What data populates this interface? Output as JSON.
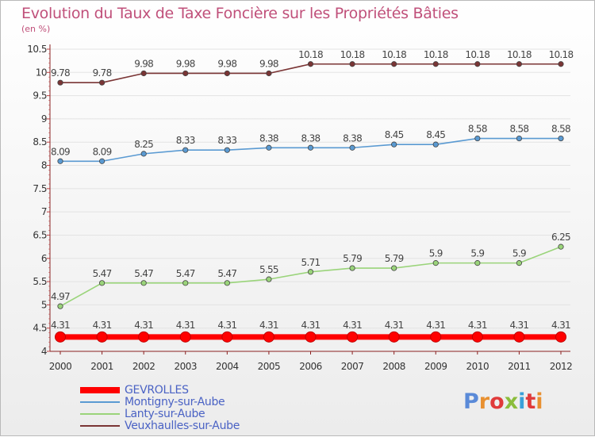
{
  "page": {
    "title": "Evolution du Taux de Taxe Foncière sur les Propriétés Bâties",
    "unit": "(en %)"
  },
  "logo": {
    "text": "Proxiti"
  },
  "chart_data": {
    "type": "line",
    "title": "Evolution du Taux de Taxe Foncière sur les Propriétés Bâties",
    "ylabel": "(en %)",
    "xlabel": "",
    "x": [
      "2000",
      "2001",
      "2002",
      "2003",
      "2004",
      "2005",
      "2006",
      "2007",
      "2008",
      "2009",
      "2010",
      "2011",
      "2012"
    ],
    "ylim": [
      4,
      10.5
    ],
    "yticks": [
      "4",
      "4.5",
      "5",
      "5.5",
      "6",
      "6.5",
      "7",
      "7.5",
      "8",
      "8.5",
      "9",
      "9.5",
      "10",
      "10.5"
    ],
    "grid": "horizontal",
    "legend_position": "bottom-left",
    "series": [
      {
        "name": "GEVROLLES",
        "color": "#ff0000",
        "values": [
          4.31,
          4.31,
          4.31,
          4.31,
          4.31,
          4.31,
          4.31,
          4.31,
          4.31,
          4.31,
          4.31,
          4.31,
          4.31
        ],
        "labels": [
          "4.31",
          "4.31",
          "4.31",
          "4.31",
          "4.31",
          "4.31",
          "4.31",
          "4.31",
          "4.31",
          "4.31",
          "4.31",
          "4.31",
          "4.31"
        ]
      },
      {
        "name": "Montigny-sur-Aube",
        "color": "#5a9ad2",
        "values": [
          8.09,
          8.09,
          8.25,
          8.33,
          8.33,
          8.38,
          8.38,
          8.38,
          8.45,
          8.45,
          8.58,
          8.58,
          8.58
        ],
        "labels": [
          "8.09",
          "8.09",
          "8.25",
          "8.33",
          "8.33",
          "8.38",
          "8.38",
          "8.38",
          "8.45",
          "8.45",
          "8.58",
          "8.58",
          "8.58"
        ]
      },
      {
        "name": "Lanty-sur-Aube",
        "color": "#9ad47a",
        "values": [
          4.97,
          5.47,
          5.47,
          5.47,
          5.47,
          5.55,
          5.71,
          5.79,
          5.79,
          5.9,
          5.9,
          5.9,
          6.25
        ],
        "labels": [
          "4.97",
          "5.47",
          "5.47",
          "5.47",
          "5.47",
          "5.55",
          "5.71",
          "5.79",
          "5.79",
          "5.9",
          "5.9",
          "5.9",
          "6.25"
        ]
      },
      {
        "name": "Veuxhaulles-sur-Aube",
        "color": "#7a3535",
        "values": [
          9.78,
          9.78,
          9.98,
          9.98,
          9.98,
          9.98,
          10.18,
          10.18,
          10.18,
          10.18,
          10.18,
          10.18,
          10.18
        ],
        "labels": [
          "9.78",
          "9.78",
          "9.98",
          "9.98",
          "9.98",
          "9.98",
          "10.18",
          "10.18",
          "10.18",
          "10.18",
          "10.18",
          "10.18",
          "10.18"
        ]
      }
    ]
  }
}
